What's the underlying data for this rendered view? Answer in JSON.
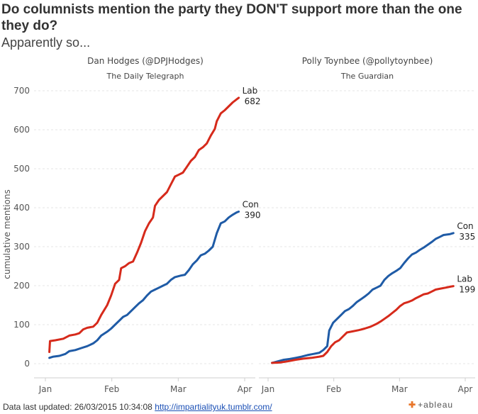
{
  "title": "Do columnists mention the party they DON'T support more than the one they do?",
  "subtitle": "Apparently so...",
  "footer": {
    "prefix": "Data last updated: 26/03/2015 10:34:08",
    "link_text": "http://impartialityuk.tumblr.com/"
  },
  "logo": "+ableau",
  "chart_data": [
    {
      "type": "line",
      "panel_title": "Dan Hodges (@DPJHodges)",
      "panel_subtitle": "The Daily Telegraph",
      "ylabel": "cumulative mentions",
      "ylim": [
        0,
        700
      ],
      "yticks": [
        0,
        100,
        200,
        300,
        400,
        500,
        600,
        700
      ],
      "xticks": [
        "Jan",
        "Feb",
        "Mar",
        "Apr"
      ],
      "grid": true,
      "series": [
        {
          "name": "Lab",
          "color": "#d62a1b",
          "end_label": "682",
          "points": [
            [
              2,
              30
            ],
            [
              2.3,
              58
            ],
            [
              5,
              60
            ],
            [
              9,
              64
            ],
            [
              12,
              72
            ],
            [
              15,
              75
            ],
            [
              17,
              78
            ],
            [
              19,
              88
            ],
            [
              21,
              92
            ],
            [
              24,
              95
            ],
            [
              26,
              105
            ],
            [
              28,
              125
            ],
            [
              31,
              150
            ],
            [
              33,
              175
            ],
            [
              35,
              205
            ],
            [
              37,
              215
            ],
            [
              38,
              245
            ],
            [
              40,
              250
            ],
            [
              42,
              258
            ],
            [
              44,
              262
            ],
            [
              46,
              285
            ],
            [
              48,
              310
            ],
            [
              50,
              340
            ],
            [
              52,
              360
            ],
            [
              54,
              375
            ],
            [
              55,
              405
            ],
            [
              57,
              420
            ],
            [
              59,
              430
            ],
            [
              61,
              440
            ],
            [
              63,
              460
            ],
            [
              65,
              480
            ],
            [
              67,
              485
            ],
            [
              69,
              490
            ],
            [
              71,
              505
            ],
            [
              73,
              520
            ],
            [
              75,
              530
            ],
            [
              77,
              548
            ],
            [
              79,
              555
            ],
            [
              81,
              565
            ],
            [
              83,
              585
            ],
            [
              85,
              602
            ],
            [
              86,
              622
            ],
            [
              88,
              642
            ],
            [
              90,
              650
            ],
            [
              92,
              660
            ],
            [
              94,
              670
            ],
            [
              96,
              678
            ],
            [
              97,
              682
            ]
          ]
        },
        {
          "name": "Con",
          "color": "#1f5ba6",
          "end_label": "390",
          "points": [
            [
              2,
              15
            ],
            [
              4,
              18
            ],
            [
              7,
              20
            ],
            [
              10,
              25
            ],
            [
              12,
              32
            ],
            [
              15,
              35
            ],
            [
              18,
              40
            ],
            [
              21,
              45
            ],
            [
              24,
              52
            ],
            [
              26,
              60
            ],
            [
              28,
              72
            ],
            [
              31,
              82
            ],
            [
              33,
              90
            ],
            [
              35,
              100
            ],
            [
              37,
              110
            ],
            [
              39,
              120
            ],
            [
              41,
              125
            ],
            [
              43,
              135
            ],
            [
              45,
              145
            ],
            [
              47,
              155
            ],
            [
              49,
              163
            ],
            [
              51,
              175
            ],
            [
              53,
              185
            ],
            [
              55,
              190
            ],
            [
              57,
              195
            ],
            [
              59,
              200
            ],
            [
              61,
              205
            ],
            [
              63,
              215
            ],
            [
              65,
              222
            ],
            [
              68,
              226
            ],
            [
              70,
              228
            ],
            [
              72,
              240
            ],
            [
              74,
              255
            ],
            [
              76,
              265
            ],
            [
              78,
              278
            ],
            [
              80,
              282
            ],
            [
              82,
              290
            ],
            [
              84,
              300
            ],
            [
              86,
              335
            ],
            [
              88,
              360
            ],
            [
              90,
              365
            ],
            [
              92,
              375
            ],
            [
              94,
              382
            ],
            [
              96,
              388
            ],
            [
              97,
              390
            ]
          ]
        }
      ]
    },
    {
      "type": "line",
      "panel_title": "Polly Toynbee (@pollytoynbee)",
      "panel_subtitle": "The Guardian",
      "ylim": [
        0,
        700
      ],
      "xticks": [
        "Jan",
        "Feb",
        "Mar",
        "Apr"
      ],
      "grid": true,
      "series": [
        {
          "name": "Con",
          "color": "#1f5ba6",
          "end_label": "335",
          "points": [
            [
              2,
              2
            ],
            [
              5,
              6
            ],
            [
              8,
              10
            ],
            [
              11,
              12
            ],
            [
              14,
              15
            ],
            [
              17,
              18
            ],
            [
              20,
              22
            ],
            [
              23,
              25
            ],
            [
              26,
              28
            ],
            [
              28,
              35
            ],
            [
              30,
              45
            ],
            [
              31,
              85
            ],
            [
              33,
              105
            ],
            [
              35,
              115
            ],
            [
              37,
              125
            ],
            [
              39,
              135
            ],
            [
              41,
              140
            ],
            [
              43,
              148
            ],
            [
              45,
              158
            ],
            [
              47,
              165
            ],
            [
              49,
              172
            ],
            [
              51,
              180
            ],
            [
              53,
              190
            ],
            [
              55,
              195
            ],
            [
              57,
              200
            ],
            [
              59,
              215
            ],
            [
              61,
              225
            ],
            [
              63,
              232
            ],
            [
              65,
              238
            ],
            [
              67,
              245
            ],
            [
              69,
              258
            ],
            [
              71,
              270
            ],
            [
              73,
              280
            ],
            [
              75,
              285
            ],
            [
              77,
              292
            ],
            [
              79,
              298
            ],
            [
              81,
              305
            ],
            [
              83,
              312
            ],
            [
              85,
              320
            ],
            [
              87,
              325
            ],
            [
              89,
              330
            ],
            [
              92,
              332
            ],
            [
              94,
              335
            ]
          ]
        },
        {
          "name": "Lab",
          "color": "#d62a1b",
          "end_label": "199",
          "points": [
            [
              2,
              2
            ],
            [
              6,
              3
            ],
            [
              10,
              6
            ],
            [
              14,
              10
            ],
            [
              18,
              13
            ],
            [
              22,
              15
            ],
            [
              26,
              18
            ],
            [
              28,
              20
            ],
            [
              30,
              30
            ],
            [
              32,
              45
            ],
            [
              34,
              55
            ],
            [
              36,
              60
            ],
            [
              38,
              70
            ],
            [
              40,
              80
            ],
            [
              43,
              83
            ],
            [
              46,
              86
            ],
            [
              49,
              90
            ],
            [
              52,
              95
            ],
            [
              55,
              102
            ],
            [
              57,
              108
            ],
            [
              59,
              115
            ],
            [
              61,
              122
            ],
            [
              63,
              130
            ],
            [
              65,
              138
            ],
            [
              67,
              148
            ],
            [
              69,
              155
            ],
            [
              71,
              158
            ],
            [
              73,
              162
            ],
            [
              75,
              168
            ],
            [
              77,
              173
            ],
            [
              79,
              178
            ],
            [
              81,
              180
            ],
            [
              83,
              185
            ],
            [
              85,
              190
            ],
            [
              87,
              192
            ],
            [
              90,
              195
            ],
            [
              92,
              197
            ],
            [
              94,
              199
            ]
          ]
        }
      ]
    }
  ]
}
